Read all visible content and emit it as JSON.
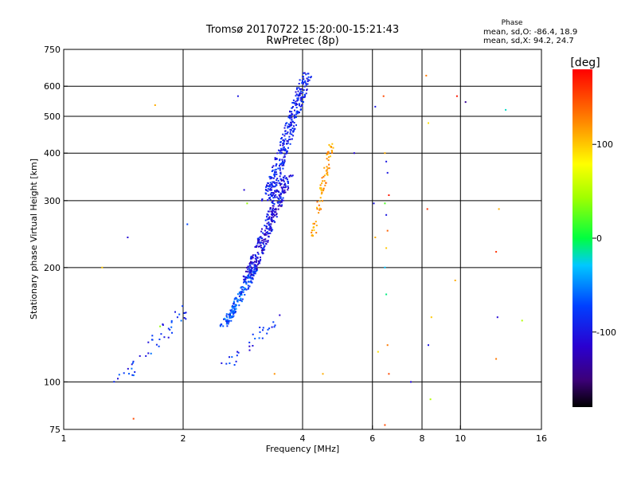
{
  "header": {
    "title_line1": "Tromsø 20170722 15:20:00-15:21:43",
    "title_line2": "RwPretec (8p)"
  },
  "phase_box": {
    "heading": "Phase",
    "line_o": "mean, sd,O: -86.4, 18.9",
    "line_x": "mean, sd,X:  94.2, 24.7"
  },
  "colorbar": {
    "unit_label": "[deg]",
    "range": [
      -180,
      180
    ],
    "ticks": [
      {
        "value": 100,
        "label": "100"
      },
      {
        "value": 0,
        "label": "0"
      },
      {
        "value": -100,
        "label": "-100"
      }
    ]
  },
  "chart_data": {
    "type": "scatter",
    "title": "Tromsø 20170722 15:20:00-15:21:43",
    "subtitle": "RwPretec (8p)",
    "xlabel": "Frequency [MHz]",
    "ylabel": "Stationary phase Virtual Height [km]",
    "x_scale": "log",
    "y_scale": "log",
    "xlim": [
      1,
      16
    ],
    "ylim": [
      75,
      750
    ],
    "grid": true,
    "x_ticks": [
      {
        "value": 1,
        "label": "1"
      },
      {
        "value": 2,
        "label": "2"
      },
      {
        "value": 4,
        "label": "4"
      },
      {
        "value": 6,
        "label": "6"
      },
      {
        "value": 8,
        "label": "8"
      },
      {
        "value": 10,
        "label": "10"
      },
      {
        "value": 16,
        "label": "16"
      }
    ],
    "y_ticks": [
      {
        "value": 75,
        "label": "75"
      },
      {
        "value": 100,
        "label": "100"
      },
      {
        "value": 200,
        "label": "200"
      },
      {
        "value": 300,
        "label": "300"
      },
      {
        "value": 400,
        "label": "400"
      },
      {
        "value": 500,
        "label": "500"
      },
      {
        "value": 600,
        "label": "600"
      },
      {
        "value": 750,
        "label": "750"
      }
    ],
    "x_gridlines": [
      2,
      4,
      6,
      8,
      10
    ],
    "y_gridlines": [
      100,
      200,
      300,
      400,
      500,
      600
    ],
    "color_scale": {
      "quantity": "phase",
      "unit": "deg",
      "range": [
        -180,
        180
      ]
    },
    "clusters": [
      {
        "name": "O-trace lower",
        "x_range": [
          2.5,
          3.1
        ],
        "y_range": [
          140,
          200
        ],
        "phase_range": [
          -95,
          -40
        ],
        "count": 170
      },
      {
        "name": "O-trace mid",
        "x_range": [
          2.85,
          3.75
        ],
        "y_range": [
          185,
          350
        ],
        "phase_range": [
          -135,
          -75
        ],
        "count": 320
      },
      {
        "name": "O-trace upper",
        "x_range": [
          3.2,
          4.2
        ],
        "y_range": [
          300,
          650
        ],
        "phase_range": [
          -110,
          -70
        ],
        "count": 330
      },
      {
        "name": "X-trace",
        "x_range": [
          4.2,
          4.8
        ],
        "y_range": [
          240,
          430
        ],
        "phase_range": [
          95,
          140
        ],
        "count": 75
      },
      {
        "name": "low-altitude group",
        "x_range": [
          1.35,
          2.15
        ],
        "y_range": [
          100,
          160
        ],
        "phase_range": [
          -110,
          -55
        ],
        "count": 45
      },
      {
        "name": "bottomside steps",
        "x_range": [
          2.5,
          3.6
        ],
        "y_range": [
          110,
          150
        ],
        "phase_range": [
          -115,
          -60
        ],
        "count": 30
      }
    ],
    "points": [
      {
        "x": 4.05,
        "y": 650,
        "phase": -120
      },
      {
        "x": 2.75,
        "y": 565,
        "phase": -100
      },
      {
        "x": 1.7,
        "y": 535,
        "phase": 110
      },
      {
        "x": 1.45,
        "y": 240,
        "phase": -110
      },
      {
        "x": 2.05,
        "y": 260,
        "phase": -70
      },
      {
        "x": 1.25,
        "y": 200,
        "phase": 100
      },
      {
        "x": 1.5,
        "y": 80,
        "phase": 150
      },
      {
        "x": 1.45,
        "y": 75,
        "phase": 60
      },
      {
        "x": 1.0,
        "y": 120,
        "phase": 50
      },
      {
        "x": 2.85,
        "y": 320,
        "phase": -110
      },
      {
        "x": 2.9,
        "y": 295,
        "phase": 40
      },
      {
        "x": 3.4,
        "y": 105,
        "phase": 120
      },
      {
        "x": 4.5,
        "y": 105,
        "phase": 110
      },
      {
        "x": 5.4,
        "y": 400,
        "phase": -110
      },
      {
        "x": 6.1,
        "y": 530,
        "phase": -100
      },
      {
        "x": 6.05,
        "y": 295,
        "phase": -100
      },
      {
        "x": 6.1,
        "y": 240,
        "phase": 110
      },
      {
        "x": 6.2,
        "y": 120,
        "phase": 90
      },
      {
        "x": 6.4,
        "y": 565,
        "phase": 150
      },
      {
        "x": 6.45,
        "y": 400,
        "phase": 110
      },
      {
        "x": 6.5,
        "y": 380,
        "phase": -100
      },
      {
        "x": 6.55,
        "y": 355,
        "phase": -100
      },
      {
        "x": 6.6,
        "y": 310,
        "phase": 170
      },
      {
        "x": 6.45,
        "y": 295,
        "phase": 20
      },
      {
        "x": 6.5,
        "y": 275,
        "phase": -100
      },
      {
        "x": 6.55,
        "y": 250,
        "phase": 140
      },
      {
        "x": 6.5,
        "y": 225,
        "phase": 100
      },
      {
        "x": 6.45,
        "y": 200,
        "phase": -30
      },
      {
        "x": 6.5,
        "y": 170,
        "phase": -10
      },
      {
        "x": 6.55,
        "y": 125,
        "phase": 130
      },
      {
        "x": 6.6,
        "y": 105,
        "phase": 150
      },
      {
        "x": 6.45,
        "y": 77,
        "phase": 150
      },
      {
        "x": 7.5,
        "y": 100,
        "phase": -110
      },
      {
        "x": 8.2,
        "y": 640,
        "phase": 130
      },
      {
        "x": 8.3,
        "y": 480,
        "phase": 90
      },
      {
        "x": 8.25,
        "y": 285,
        "phase": 160
      },
      {
        "x": 8.3,
        "y": 125,
        "phase": -100
      },
      {
        "x": 8.4,
        "y": 90,
        "phase": 50
      },
      {
        "x": 8.45,
        "y": 148,
        "phase": 100
      },
      {
        "x": 9.8,
        "y": 565,
        "phase": 170
      },
      {
        "x": 10.3,
        "y": 545,
        "phase": -140
      },
      {
        "x": 9.7,
        "y": 185,
        "phase": 110
      },
      {
        "x": 12.3,
        "y": 220,
        "phase": 160
      },
      {
        "x": 12.5,
        "y": 285,
        "phase": 110
      },
      {
        "x": 12.4,
        "y": 148,
        "phase": -110
      },
      {
        "x": 12.3,
        "y": 115,
        "phase": 130
      },
      {
        "x": 13.0,
        "y": 520,
        "phase": -20
      },
      {
        "x": 14.3,
        "y": 145,
        "phase": 50
      },
      {
        "x": 1.75,
        "y": 140,
        "phase": 40
      }
    ]
  }
}
